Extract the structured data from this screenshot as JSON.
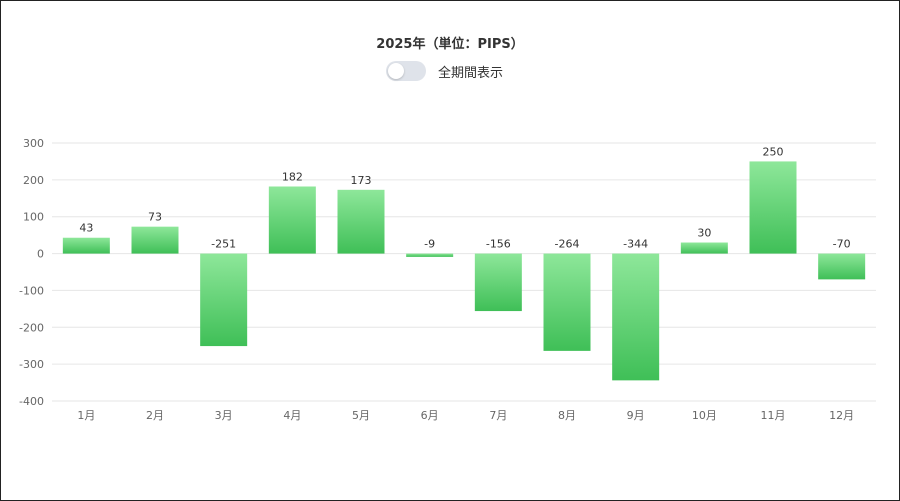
{
  "header": {
    "title": "2025年（単位：PIPS）",
    "toggle_label": "全期間表示",
    "toggle_on": false
  },
  "colors": {
    "bar_top": "#8ee79a",
    "bar_bottom": "#3fbf57",
    "grid": "#e6e6e6",
    "toggle_track": "#dfe3ea"
  },
  "chart_data": {
    "type": "bar",
    "categories": [
      "1月",
      "2月",
      "3月",
      "4月",
      "5月",
      "6月",
      "7月",
      "8月",
      "9月",
      "10月",
      "11月",
      "12月"
    ],
    "values": [
      43,
      73,
      -251,
      182,
      173,
      -9,
      -156,
      -264,
      -344,
      30,
      250,
      -70
    ],
    "data_labels": [
      "43",
      "73",
      "-251",
      "182",
      "173",
      "-9",
      "-156",
      "-264",
      "-344",
      "30",
      "250",
      "-70"
    ],
    "yticks": [
      300,
      200,
      100,
      0,
      -100,
      -200,
      -300,
      -400
    ],
    "ytick_labels": [
      "300",
      "200",
      "100",
      "0",
      "-100",
      "-200",
      "-300",
      "-400"
    ],
    "ylim": [
      -400,
      300
    ],
    "grid": true,
    "legend": false
  }
}
